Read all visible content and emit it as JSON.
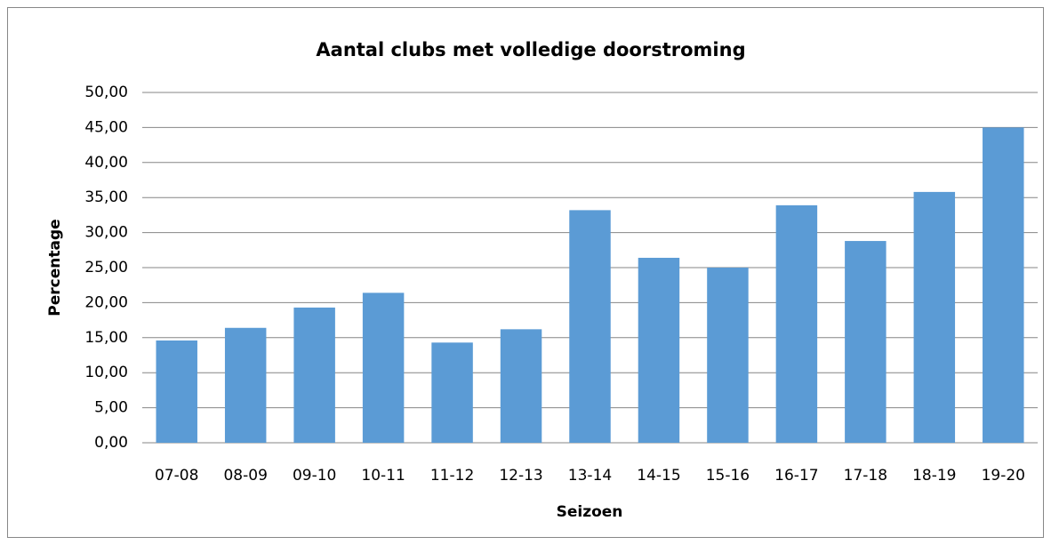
{
  "chart_data": {
    "type": "bar",
    "title": "Aantal clubs met volledige doorstroming",
    "x_label": "Seizoen",
    "y_label": "Percentage",
    "categories": [
      "07-08",
      "08-09",
      "09-10",
      "10-11",
      "11-12",
      "12-13",
      "13-14",
      "14-15",
      "15-16",
      "16-17",
      "17-18",
      "18-19",
      "19-20"
    ],
    "values": [
      14.6,
      16.4,
      19.3,
      21.4,
      14.3,
      16.2,
      33.2,
      26.4,
      25.0,
      33.9,
      28.8,
      35.8,
      45.0
    ],
    "color": "#5b9bd5",
    "ylim": [
      0,
      50
    ],
    "yticks": [
      {
        "value": 0,
        "label": "0,00"
      },
      {
        "value": 5,
        "label": "5,00"
      },
      {
        "value": 10,
        "label": "10,00"
      },
      {
        "value": 15,
        "label": "15,00"
      },
      {
        "value": 20,
        "label": "20,00"
      },
      {
        "value": 25,
        "label": "25,00"
      },
      {
        "value": 30,
        "label": "30,00"
      },
      {
        "value": 35,
        "label": "35,00"
      },
      {
        "value": 40,
        "label": "40,00"
      },
      {
        "value": 45,
        "label": "45,00"
      },
      {
        "value": 50,
        "label": "50,00"
      }
    ],
    "grid": true
  }
}
